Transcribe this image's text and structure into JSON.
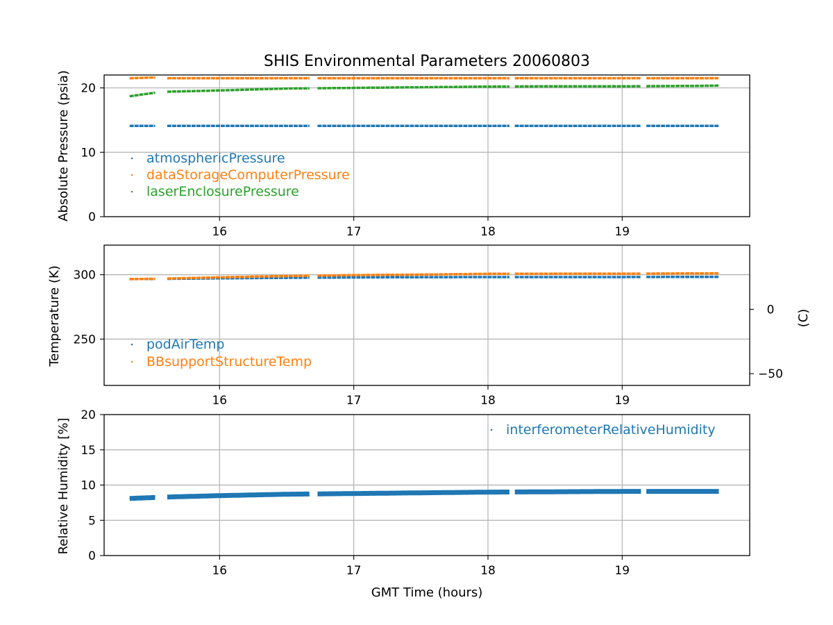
{
  "chart_data": [
    {
      "type": "scatter",
      "title": "SHIS Environmental Parameters 20060803",
      "xlabel": "",
      "ylabel": "Absolute Pressure (psia)",
      "xlim": [
        15.14,
        19.95
      ],
      "ylim": [
        0,
        22
      ],
      "x_ticks": [
        "16",
        "17",
        "18",
        "19"
      ],
      "y_ticks": [
        "0",
        "10",
        "20"
      ],
      "grid": true,
      "legend_position": "lower-left",
      "series": [
        {
          "name": "atmosphericPressure",
          "color": "#1f77b4",
          "points": [
            [
              15.33,
              14.1
            ],
            [
              15.6,
              14.1
            ],
            [
              16.0,
              14.1
            ],
            [
              16.5,
              14.1
            ],
            [
              17.0,
              14.1
            ],
            [
              17.5,
              14.1
            ],
            [
              18.0,
              14.1
            ],
            [
              18.5,
              14.1
            ],
            [
              19.0,
              14.1
            ],
            [
              19.5,
              14.1
            ],
            [
              19.72,
              14.1
            ]
          ],
          "gaps": [
            [
              15.52,
              15.61
            ],
            [
              16.68,
              16.73
            ],
            [
              18.17,
              18.2
            ],
            [
              19.15,
              19.18
            ]
          ]
        },
        {
          "name": "dataStorageComputerPressure",
          "color": "#ff7f0e",
          "points": [
            [
              15.33,
              21.5
            ],
            [
              15.5,
              21.6
            ],
            [
              15.6,
              21.5
            ],
            [
              16.0,
              21.5
            ],
            [
              16.5,
              21.5
            ],
            [
              17.0,
              21.5
            ],
            [
              17.5,
              21.5
            ],
            [
              18.0,
              21.5
            ],
            [
              18.5,
              21.5
            ],
            [
              19.0,
              21.5
            ],
            [
              19.5,
              21.5
            ],
            [
              19.72,
              21.5
            ]
          ],
          "gaps": [
            [
              15.52,
              15.61
            ],
            [
              16.68,
              16.73
            ],
            [
              18.17,
              18.2
            ],
            [
              19.15,
              19.18
            ]
          ]
        },
        {
          "name": "laserEnclosurePressure",
          "color": "#2ca02c",
          "points": [
            [
              15.33,
              18.7
            ],
            [
              15.5,
              19.2
            ],
            [
              15.6,
              19.4
            ],
            [
              16.0,
              19.6
            ],
            [
              16.5,
              19.9
            ],
            [
              17.0,
              20.0
            ],
            [
              17.5,
              20.1
            ],
            [
              18.0,
              20.2
            ],
            [
              18.5,
              20.25
            ],
            [
              19.0,
              20.25
            ],
            [
              19.5,
              20.3
            ],
            [
              19.72,
              20.35
            ]
          ],
          "gaps": [
            [
              15.52,
              15.61
            ],
            [
              16.68,
              16.73
            ],
            [
              18.17,
              18.2
            ],
            [
              19.15,
              19.18
            ]
          ]
        }
      ]
    },
    {
      "type": "scatter",
      "xlabel": "",
      "ylabel": "Temperature (K)",
      "y2label": "(C)",
      "xlim": [
        15.14,
        19.95
      ],
      "ylim": [
        214,
        323
      ],
      "x_ticks": [
        "16",
        "17",
        "18",
        "19"
      ],
      "y_ticks": [
        "250",
        "300"
      ],
      "y2_ticks": [
        "−50",
        "0"
      ],
      "grid": true,
      "legend_position": "lower-left",
      "series": [
        {
          "name": "podAirTemp",
          "color": "#1f77b4",
          "points": [
            [
              15.33,
              296.6
            ],
            [
              15.6,
              296.8
            ],
            [
              16.0,
              297.2
            ],
            [
              16.5,
              297.6
            ],
            [
              17.0,
              297.9
            ],
            [
              17.5,
              298.1
            ],
            [
              18.0,
              298.2
            ],
            [
              18.5,
              298.2
            ],
            [
              19.0,
              298.2
            ],
            [
              19.5,
              298.3
            ],
            [
              19.72,
              298.3
            ]
          ],
          "gaps": [
            [
              15.52,
              15.61
            ],
            [
              16.68,
              16.73
            ],
            [
              18.17,
              18.2
            ],
            [
              19.15,
              19.18
            ]
          ]
        },
        {
          "name": "BBsupportStructureTemp",
          "color": "#ff7f0e",
          "points": [
            [
              15.33,
              296.6
            ],
            [
              15.6,
              297.0
            ],
            [
              16.0,
              298.0
            ],
            [
              16.5,
              299.0
            ],
            [
              17.0,
              299.7
            ],
            [
              17.5,
              300.1
            ],
            [
              18.0,
              300.7
            ],
            [
              18.5,
              300.8
            ],
            [
              19.0,
              300.8
            ],
            [
              19.5,
              301.0
            ],
            [
              19.72,
              301.1
            ]
          ],
          "gaps": [
            [
              15.52,
              15.61
            ],
            [
              16.68,
              16.73
            ],
            [
              18.17,
              18.2
            ],
            [
              19.15,
              19.18
            ]
          ]
        }
      ]
    },
    {
      "type": "scatter",
      "xlabel": "GMT Time (hours)",
      "ylabel": "Relative Humidity [%]",
      "xlim": [
        15.14,
        19.95
      ],
      "ylim": [
        0,
        20
      ],
      "x_ticks": [
        "16",
        "17",
        "18",
        "19"
      ],
      "y_ticks": [
        "0",
        "5",
        "10",
        "15",
        "20"
      ],
      "grid": true,
      "legend_position": "upper-right",
      "series": [
        {
          "name": "interferometerRelativeHumidity",
          "color": "#1f77b4",
          "points": [
            [
              15.33,
              8.1
            ],
            [
              15.6,
              8.3
            ],
            [
              16.0,
              8.5
            ],
            [
              16.5,
              8.7
            ],
            [
              17.0,
              8.8
            ],
            [
              17.5,
              8.9
            ],
            [
              18.0,
              9.0
            ],
            [
              18.5,
              9.05
            ],
            [
              19.0,
              9.1
            ],
            [
              19.5,
              9.1
            ],
            [
              19.72,
              9.1
            ]
          ],
          "gaps": [
            [
              15.52,
              15.61
            ],
            [
              16.68,
              16.73
            ],
            [
              18.17,
              18.2
            ],
            [
              19.15,
              19.18
            ]
          ]
        }
      ]
    }
  ]
}
